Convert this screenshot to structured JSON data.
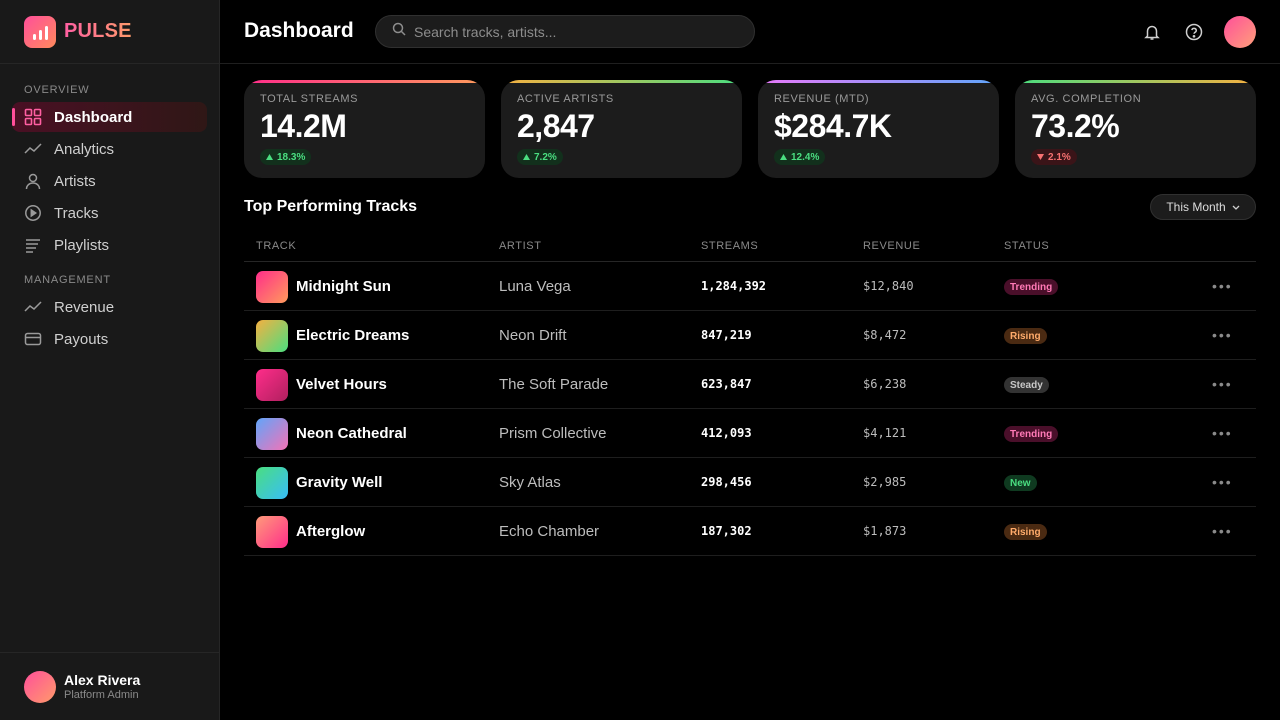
{
  "app": {
    "name": "PULSE"
  },
  "sidebar": {
    "sections": [
      {
        "label": "OVERVIEW"
      },
      {
        "label": "MANAGEMENT"
      }
    ],
    "items": [
      {
        "label": "Dashboard",
        "icon": "grid-icon",
        "active": true
      },
      {
        "label": "Analytics",
        "icon": "trend-line-icon"
      },
      {
        "label": "Artists",
        "icon": "user-icon"
      },
      {
        "label": "Tracks",
        "icon": "play-circle-icon"
      },
      {
        "label": "Playlists",
        "icon": "list-icon"
      },
      {
        "label": "Revenue",
        "icon": "trend-line-icon"
      },
      {
        "label": "Payouts",
        "icon": "card-icon"
      }
    ],
    "user": {
      "name": "Alex Rivera",
      "role": "Platform Admin"
    }
  },
  "header": {
    "title": "Dashboard",
    "search_placeholder": "Search tracks, artists..."
  },
  "stats": [
    {
      "label": "TOTAL STREAMS",
      "value": "14.2M",
      "delta": "18.3%",
      "direction": "up",
      "accent": "#ff4f9a"
    },
    {
      "label": "ACTIVE ARTISTS",
      "value": "2,847",
      "delta": "7.2%",
      "direction": "up",
      "accent": "#f5b041"
    },
    {
      "label": "REVENUE (MTD)",
      "value": "$284.7K",
      "delta": "12.4%",
      "direction": "up",
      "accent": "#a78bfa"
    },
    {
      "label": "AVG. COMPLETION",
      "value": "73.2%",
      "delta": "2.1%",
      "direction": "down",
      "accent": "#4ade80"
    }
  ],
  "tracks_section": {
    "title": "Top Performing Tracks",
    "filter": "This Month",
    "columns": [
      "TRACK",
      "ARTIST",
      "STREAMS",
      "REVENUE",
      "STATUS"
    ],
    "rows": [
      {
        "track": "Midnight Sun",
        "artist": "Luna Vega",
        "streams": "1,284,392",
        "revenue": "$12,840",
        "status": "Trending"
      },
      {
        "track": "Electric Dreams",
        "artist": "Neon Drift",
        "streams": "847,219",
        "revenue": "$8,472",
        "status": "Rising"
      },
      {
        "track": "Velvet Hours",
        "artist": "The Soft Parade",
        "streams": "623,847",
        "revenue": "$6,238",
        "status": "Steady"
      },
      {
        "track": "Neon Cathedral",
        "artist": "Prism Collective",
        "streams": "412,093",
        "revenue": "$4,121",
        "status": "Trending"
      },
      {
        "track": "Gravity Well",
        "artist": "Sky Atlas",
        "streams": "298,456",
        "revenue": "$2,985",
        "status": "New"
      },
      {
        "track": "Afterglow",
        "artist": "Echo Chamber",
        "streams": "187,302",
        "revenue": "$1,873",
        "status": "Rising"
      }
    ]
  }
}
